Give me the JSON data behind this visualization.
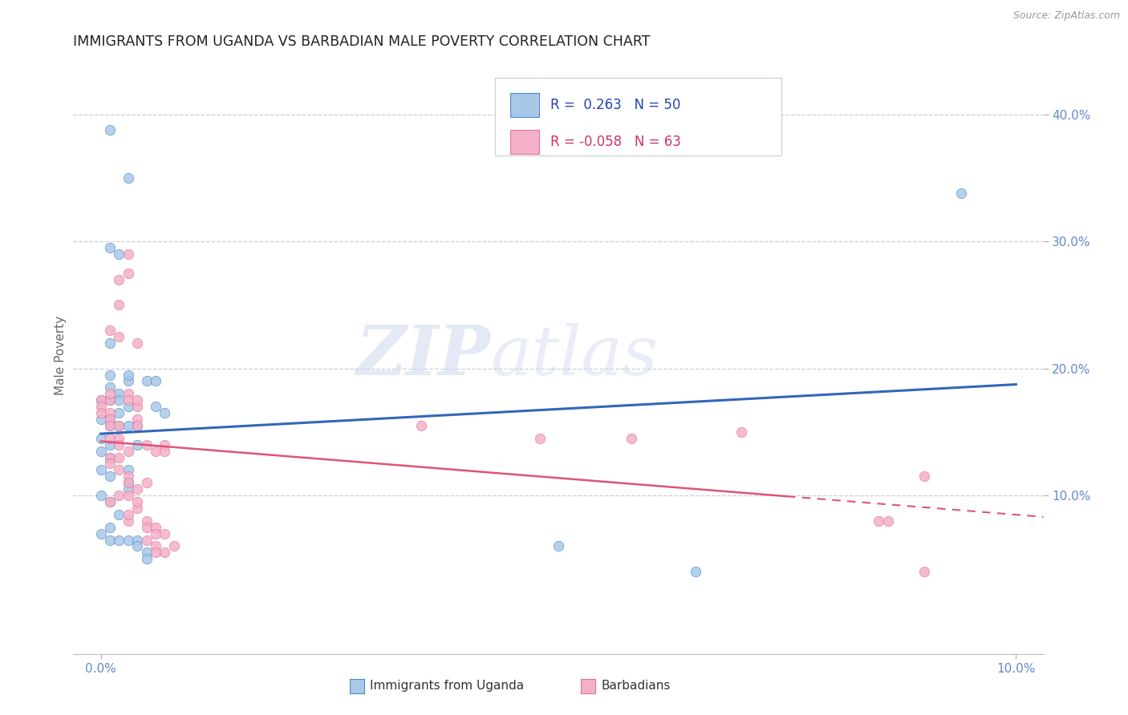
{
  "title": "IMMIGRANTS FROM UGANDA VS BARBADIAN MALE POVERTY CORRELATION CHART",
  "source": "Source: ZipAtlas.com",
  "ylabel": "Male Poverty",
  "xlim": [
    -0.003,
    0.103
  ],
  "ylim": [
    -0.025,
    0.445
  ],
  "blue_color": "#a8c8e8",
  "blue_edge": "#5588cc",
  "pink_color": "#f4b0c8",
  "pink_edge": "#dd7799",
  "blue_line_color": "#3366bb",
  "pink_line_color": "#dd5577",
  "grid_color": "#ccccdd",
  "bg_color": "#ffffff",
  "title_color": "#222222",
  "tick_color": "#6688cc",
  "marker_size": 80,
  "blue_scatter_x": [
    0.001,
    0.003,
    0.001,
    0.002,
    0.001,
    0.001,
    0.003,
    0.001,
    0.002,
    0.001,
    0.0,
    0.002,
    0.003,
    0.002,
    0.0,
    0.001,
    0.001,
    0.002,
    0.003,
    0.0,
    0.001,
    0.0,
    0.001,
    0.0,
    0.001,
    0.003,
    0.003,
    0.0,
    0.001,
    0.002,
    0.001,
    0.0,
    0.001,
    0.002,
    0.003,
    0.004,
    0.003,
    0.003,
    0.005,
    0.006,
    0.006,
    0.007,
    0.004,
    0.004,
    0.004,
    0.005,
    0.005,
    0.094,
    0.05,
    0.065
  ],
  "blue_scatter_y": [
    0.388,
    0.35,
    0.295,
    0.29,
    0.22,
    0.195,
    0.19,
    0.185,
    0.18,
    0.175,
    0.175,
    0.175,
    0.17,
    0.165,
    0.16,
    0.16,
    0.155,
    0.155,
    0.155,
    0.145,
    0.14,
    0.135,
    0.13,
    0.12,
    0.115,
    0.11,
    0.105,
    0.1,
    0.095,
    0.085,
    0.075,
    0.07,
    0.065,
    0.065,
    0.065,
    0.065,
    0.12,
    0.195,
    0.19,
    0.19,
    0.17,
    0.165,
    0.155,
    0.14,
    0.06,
    0.055,
    0.05,
    0.338,
    0.06,
    0.04
  ],
  "pink_scatter_x": [
    0.0,
    0.0,
    0.0,
    0.001,
    0.001,
    0.001,
    0.002,
    0.001,
    0.001,
    0.001,
    0.002,
    0.002,
    0.001,
    0.001,
    0.002,
    0.003,
    0.002,
    0.003,
    0.003,
    0.002,
    0.001,
    0.003,
    0.001,
    0.002,
    0.002,
    0.002,
    0.003,
    0.003,
    0.003,
    0.003,
    0.004,
    0.004,
    0.004,
    0.004,
    0.003,
    0.003,
    0.004,
    0.004,
    0.004,
    0.005,
    0.005,
    0.005,
    0.006,
    0.006,
    0.007,
    0.005,
    0.006,
    0.006,
    0.007,
    0.004,
    0.005,
    0.006,
    0.007,
    0.007,
    0.008,
    0.035,
    0.048,
    0.058,
    0.07,
    0.085,
    0.086,
    0.09,
    0.09
  ],
  "pink_scatter_y": [
    0.175,
    0.17,
    0.165,
    0.165,
    0.16,
    0.155,
    0.155,
    0.175,
    0.18,
    0.145,
    0.145,
    0.14,
    0.13,
    0.125,
    0.13,
    0.135,
    0.12,
    0.115,
    0.11,
    0.1,
    0.095,
    0.1,
    0.23,
    0.25,
    0.225,
    0.27,
    0.29,
    0.275,
    0.18,
    0.175,
    0.17,
    0.175,
    0.16,
    0.155,
    0.08,
    0.085,
    0.09,
    0.095,
    0.105,
    0.11,
    0.08,
    0.075,
    0.075,
    0.07,
    0.07,
    0.065,
    0.06,
    0.055,
    0.055,
    0.22,
    0.14,
    0.135,
    0.14,
    0.135,
    0.06,
    0.155,
    0.145,
    0.145,
    0.15,
    0.08,
    0.08,
    0.115,
    0.04
  ],
  "watermark_zip": "ZIP",
  "watermark_atlas": "atlas",
  "yticks": [
    0.1,
    0.2,
    0.3,
    0.4
  ],
  "ytick_labels": [
    "10.0%",
    "20.0%",
    "30.0%",
    "40.0%"
  ],
  "xticks": [
    0.0,
    0.1
  ],
  "xtick_labels": [
    "0.0%",
    "10.0%"
  ]
}
